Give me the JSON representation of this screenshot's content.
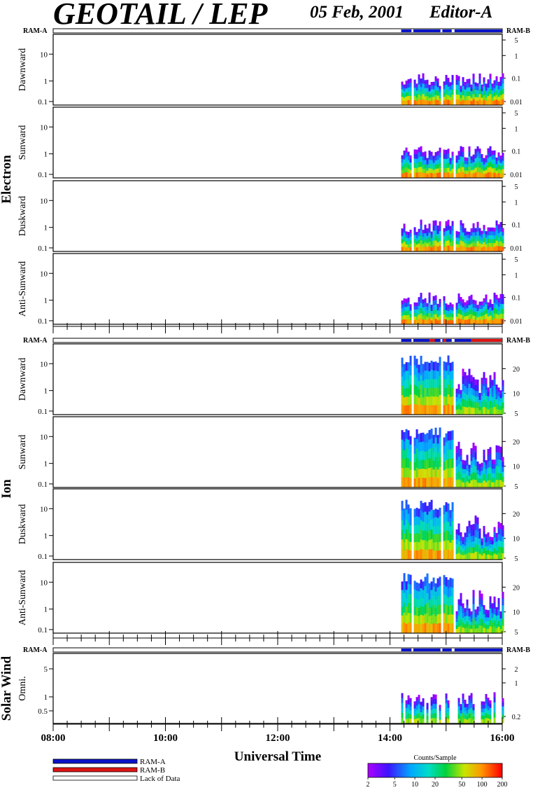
{
  "header": {
    "title": "GEOTAIL / LEP",
    "date": "05 Feb, 2001",
    "editor": "Editor-A"
  },
  "ram_labels": {
    "a": "RAM-A",
    "b": "RAM-B"
  },
  "groups": [
    {
      "label": "Electron",
      "panels": [
        "Dawnward",
        "Sunward",
        "Duskward",
        "Anti-Sunward"
      ]
    },
    {
      "label": "Ion",
      "panels": [
        "Dawnward",
        "Sunward",
        "Duskward",
        "Anti-Sunward"
      ]
    },
    {
      "label": "Solar Wind",
      "panels": [
        "Omni."
      ]
    }
  ],
  "left_ticks": {
    "standard": [
      "10",
      "1",
      "0.1"
    ],
    "solar_wind": [
      "5",
      "1",
      "0.5"
    ]
  },
  "right_ticks": {
    "electron": [
      "5",
      "1",
      "0.1",
      "0.01"
    ],
    "ion": [
      "20",
      "10",
      "5"
    ],
    "solar_wind": [
      "2",
      "1",
      "0.2"
    ]
  },
  "x_axis": {
    "label": "Universal Time",
    "ticks": [
      "08:00",
      "10:00",
      "12:00",
      "14:00",
      "16:00"
    ]
  },
  "legend": {
    "items": [
      {
        "label": "RAM-A",
        "color": "#0a14c8"
      },
      {
        "label": "RAM-B",
        "color": "#dc1414"
      },
      {
        "label": "Lack of Data",
        "color": "#ffffff"
      }
    ]
  },
  "colorbar": {
    "title": "Counts/Sample",
    "ticks": [
      "2",
      "5",
      "10",
      "20",
      "50",
      "100",
      "200"
    ]
  },
  "chart_data": {
    "type": "heatmap",
    "description_scale": "log",
    "time_range": [
      "08:00",
      "16:00"
    ],
    "data_start": "14:12",
    "gaps": [
      [
        "14:23",
        "14:25"
      ],
      [
        "14:54",
        "14:56"
      ],
      [
        "15:06",
        "15:09"
      ]
    ],
    "ram_a_color": "#0a14c8",
    "ram_b_color": "#dc1414",
    "colorbar_range": [
      2,
      200
    ]
  }
}
